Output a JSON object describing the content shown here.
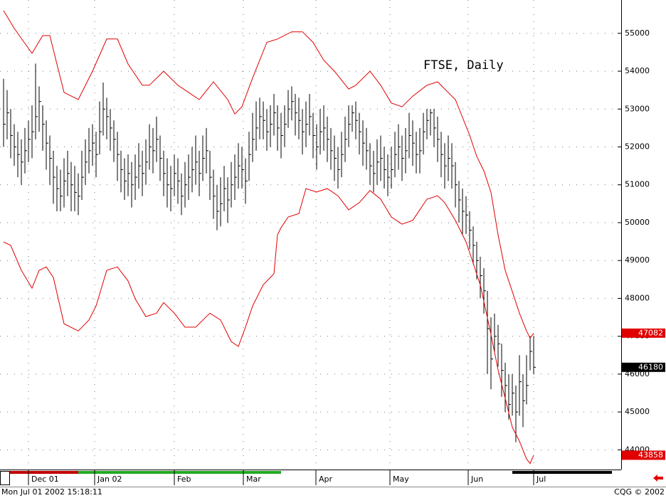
{
  "chart_data": {
    "type": "ohlc",
    "title": "FTSE, Daily",
    "high": [
      53800,
      53500,
      53000,
      52600,
      52400,
      52200,
      52500,
      52700,
      53100,
      54200,
      53600,
      53100,
      52700,
      52300,
      51900,
      51500,
      51400,
      51700,
      51900,
      51600,
      51500,
      51300,
      51900,
      52200,
      52500,
      52600,
      52400,
      53200,
      53700,
      53300,
      53000,
      52700,
      52400,
      51900,
      51700,
      51800,
      51600,
      51800,
      52100,
      51900,
      52200,
      52600,
      52500,
      52800,
      52300,
      51900,
      51700,
      51500,
      51800,
      51700,
      51300,
      51600,
      51800,
      52000,
      52300,
      51900,
      52300,
      52500,
      51900,
      51400,
      51000,
      51200,
      51500,
      51200,
      51600,
      51800,
      52100,
      52000,
      51700,
      52400,
      52900,
      53200,
      53300,
      53200,
      53000,
      53100,
      53400,
      53100,
      52900,
      53100,
      53500,
      53600,
      53400,
      53300,
      53000,
      53200,
      53400,
      52900,
      52600,
      53000,
      53100,
      52800,
      52500,
      52300,
      52000,
      52400,
      52800,
      53100,
      53100,
      53200,
      52900,
      52700,
      52500,
      52100,
      51900,
      52200,
      52300,
      52000,
      51800,
      52000,
      52400,
      52600,
      52300,
      52500,
      52900,
      52700,
      52400,
      52500,
      52900,
      53000,
      53000,
      53000,
      52800,
      52400,
      52100,
      52300,
      52100,
      51600,
      51100,
      50900,
      50700,
      50300,
      49900,
      49500,
      49100,
      48800,
      48200,
      47500,
      47600,
      47300,
      46800,
      46300,
      46000,
      46000,
      45700,
      46500,
      46000,
      46500,
      47000,
      47000
    ],
    "low": [
      52000,
      52200,
      51700,
      51500,
      51200,
      51000,
      51300,
      51600,
      51700,
      52200,
      52400,
      51900,
      51400,
      51000,
      50500,
      50300,
      50300,
      50400,
      50700,
      50300,
      50300,
      50200,
      50600,
      51000,
      51300,
      51500,
      51200,
      51800,
      52300,
      52200,
      51900,
      51600,
      51100,
      50800,
      50600,
      50700,
      50400,
      50600,
      50900,
      50700,
      51000,
      51400,
      51300,
      51600,
      51100,
      50700,
      50400,
      50300,
      50700,
      50500,
      50200,
      50400,
      50600,
      50800,
      51000,
      50700,
      51100,
      51300,
      50600,
      50100,
      49800,
      49900,
      50300,
      50000,
      50400,
      50600,
      50900,
      50900,
      50500,
      51100,
      51600,
      51900,
      52200,
      52200,
      51900,
      52000,
      52300,
      51900,
      51700,
      52000,
      52500,
      52700,
      52300,
      52200,
      51800,
      52000,
      52300,
      51700,
      51400,
      51800,
      51900,
      51600,
      51400,
      51100,
      50900,
      51200,
      51600,
      52000,
      52400,
      52200,
      51800,
      51500,
      51400,
      51000,
      50800,
      51000,
      51100,
      50900,
      50700,
      50900,
      51200,
      51400,
      51100,
      51300,
      51700,
      51500,
      51300,
      51300,
      51800,
      52200,
      52300,
      52000,
      51600,
      51200,
      50900,
      51100,
      50900,
      50400,
      50000,
      49700,
      49700,
      49300,
      48900,
      48500,
      48000,
      47600,
      46000,
      45600,
      46600,
      46200,
      45400,
      45000,
      44800,
      44900,
      44200,
      44900,
      44600,
      45200,
      46100,
      46000
    ],
    "close": [
      52600,
      52900,
      52300,
      52000,
      51800,
      51600,
      51900,
      52200,
      52400,
      52800,
      53200,
      52600,
      52100,
      51700,
      51200,
      50900,
      50700,
      51100,
      51300,
      51000,
      50800,
      50700,
      51200,
      51600,
      51900,
      52100,
      51800,
      52400,
      53000,
      52800,
      52500,
      52200,
      51800,
      51400,
      51100,
      51300,
      51000,
      51200,
      51500,
      51300,
      51600,
      52000,
      51900,
      52200,
      51700,
      51300,
      51000,
      50900,
      51300,
      51100,
      50700,
      51000,
      51200,
      51400,
      51600,
      51300,
      51700,
      51900,
      51200,
      50700,
      50300,
      50500,
      50900,
      50600,
      51000,
      51200,
      51500,
      51400,
      51100,
      51800,
      52200,
      52500,
      52800,
      52700,
      52400,
      52600,
      52900,
      52500,
      52300,
      52600,
      53000,
      53200,
      52900,
      52700,
      52400,
      52600,
      52800,
      52300,
      52000,
      52400,
      52500,
      52200,
      51900,
      51700,
      51400,
      51800,
      52200,
      52600,
      52900,
      52700,
      52400,
      52100,
      51900,
      51500,
      51300,
      51600,
      51700,
      51400,
      51200,
      51400,
      51800,
      52000,
      51700,
      51900,
      52300,
      52100,
      51800,
      51900,
      52400,
      52700,
      52900,
      52500,
      52200,
      51800,
      51500,
      51700,
      51500,
      51000,
      50600,
      50300,
      50200,
      49800,
      49400,
      49000,
      48600,
      48200,
      47200,
      46400,
      47000,
      46800,
      46100,
      45700,
      45200,
      45500,
      45000,
      45800,
      45300,
      45700,
      46600,
      46180
    ],
    "bands": [
      {
        "color": "#e00000",
        "x": [
          0,
          3,
          8,
          11,
          13,
          15,
          17,
          21,
          25,
          29,
          32,
          35,
          39,
          41,
          45,
          49,
          52,
          55,
          59,
          63,
          65,
          67,
          70,
          74,
          77,
          81,
          84,
          87,
          90,
          93,
          97,
          99,
          103,
          106,
          109,
          112,
          115,
          119,
          122,
          124,
          127,
          129,
          131,
          133,
          135,
          137,
          139,
          141,
          143,
          145,
          147,
          148,
          149
        ],
        "values": [
          55600,
          55130,
          54470,
          54940,
          54940,
          54190,
          53440,
          53250,
          54000,
          54850,
          54850,
          54190,
          53630,
          53630,
          54000,
          53630,
          53440,
          53250,
          53720,
          53250,
          52870,
          53060,
          53820,
          54760,
          54850,
          55040,
          55040,
          54760,
          54290,
          54000,
          53530,
          53630,
          54000,
          53630,
          53160,
          53060,
          53340,
          53630,
          53720,
          53530,
          53250,
          52780,
          52310,
          51750,
          51370,
          50800,
          49680,
          48740,
          48180,
          47610,
          47140,
          46950,
          47082
        ]
      },
      {
        "color": "#e00000",
        "x": [
          0,
          2,
          5,
          8,
          10,
          12,
          14,
          17,
          21,
          24,
          26,
          29,
          32,
          35,
          37,
          40,
          43,
          45,
          48,
          51,
          54,
          58,
          61,
          64,
          66,
          68,
          70,
          73,
          76,
          77,
          78,
          80,
          83,
          85,
          88,
          91,
          94,
          97,
          100,
          103,
          106,
          109,
          112,
          115,
          119,
          122,
          124,
          127,
          130,
          132,
          134,
          137,
          139,
          141,
          143,
          145,
          147,
          148,
          149
        ],
        "values": [
          49490,
          49400,
          48740,
          48270,
          48740,
          48830,
          48550,
          47330,
          47140,
          47430,
          47800,
          48740,
          48830,
          48460,
          47990,
          47520,
          47610,
          47890,
          47610,
          47240,
          47240,
          47610,
          47430,
          46860,
          46730,
          47240,
          47800,
          48360,
          48650,
          49680,
          49870,
          50150,
          50240,
          50900,
          50810,
          50900,
          50710,
          50340,
          50530,
          50850,
          50620,
          50150,
          49960,
          50060,
          50620,
          50710,
          50530,
          50060,
          49490,
          48930,
          48360,
          47050,
          46110,
          45360,
          44600,
          44230,
          43760,
          43640,
          43858
        ]
      }
    ],
    "markers": [
      {
        "value": 47082,
        "color": "#e00000"
      },
      {
        "value": 46180,
        "color": "#000000"
      },
      {
        "value": 43858,
        "color": "#e00000"
      }
    ],
    "xlim": [
      -1,
      173.6
    ],
    "ylim": [
      43480,
      55880
    ],
    "yticks": [
      44000,
      45000,
      46000,
      47000,
      48000,
      49000,
      50000,
      51000,
      52000,
      53000,
      54000,
      55000
    ],
    "xticks": [
      {
        "value": 7,
        "label": "Dec 01"
      },
      {
        "value": 25.6,
        "label": "Jan 02"
      },
      {
        "value": 48,
        "label": "Feb"
      },
      {
        "value": 67.4,
        "label": "Mar"
      },
      {
        "value": 87.8,
        "label": "Apr"
      },
      {
        "value": 108.6,
        "label": "May"
      },
      {
        "value": 130.6,
        "label": "Jun"
      },
      {
        "value": 149,
        "label": "Jul"
      }
    ],
    "grid": true
  },
  "footer": {
    "timestamp": "Mon Jul 01 2002 15:18:11",
    "copyright": "CQG © 2002"
  }
}
